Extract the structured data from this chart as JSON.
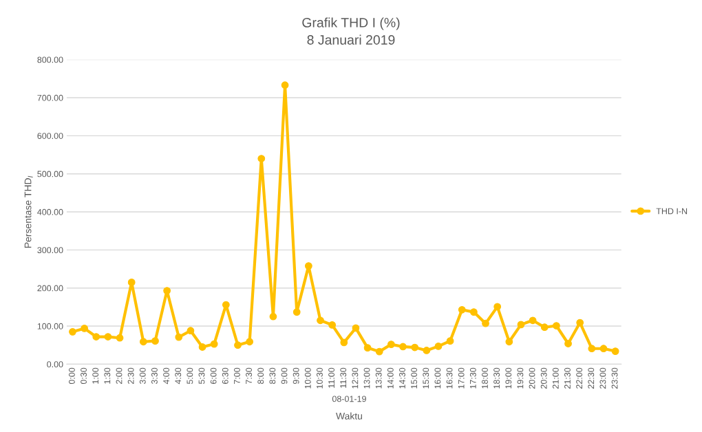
{
  "chart_data": {
    "type": "line",
    "title": "Grafik THD I (%)",
    "subtitle": "8 Januari 2019",
    "xlabel": "Waktu",
    "ylabel": "Persentase THD$_{I}$",
    "categories": [
      "0:00",
      "0:30",
      "1:00",
      "1:30",
      "2:00",
      "2:30",
      "3:00",
      "3:30",
      "4:00",
      "4:30",
      "5:00",
      "5:30",
      "6:00",
      "6:30",
      "7:00",
      "7:30",
      "8:00",
      "8:30",
      "9:00",
      "9:30",
      "10:00",
      "10:30",
      "11:00",
      "11:30",
      "12:30",
      "13:00",
      "13:30",
      "14:00",
      "14:30",
      "15:00",
      "15:30",
      "16:00",
      "16:30",
      "17:00",
      "17:30",
      "18:00",
      "18:30",
      "19:00",
      "19:30",
      "20:00",
      "20:30",
      "21:00",
      "21:30",
      "22:00",
      "22:30",
      "23:00",
      "23:30"
    ],
    "series": [
      {
        "name": "THD I-N",
        "color": "#ffc000",
        "values": [
          85,
          94,
          72,
          72,
          69,
          215,
          59,
          61,
          193,
          71,
          88,
          45,
          53,
          156,
          50,
          59,
          540,
          125,
          733,
          137,
          258,
          115,
          103,
          57,
          95,
          43,
          33,
          52,
          46,
          44,
          36,
          47,
          61,
          143,
          137,
          107,
          151,
          59,
          104,
          115,
          97,
          101,
          54,
          109,
          41,
          41,
          34
        ]
      }
    ],
    "annotations": [
      "08-01-19"
    ],
    "ylim": [
      0,
      800
    ],
    "yticks": [
      {
        "value": 0,
        "label": "0.00"
      },
      {
        "value": 100,
        "label": "100.00"
      },
      {
        "value": 200,
        "label": "200.00"
      },
      {
        "value": 300,
        "label": "300.00"
      },
      {
        "value": 400,
        "label": "400.00"
      },
      {
        "value": 500,
        "label": "500.00"
      },
      {
        "value": 600,
        "label": "600.00"
      },
      {
        "value": 700,
        "label": "700.00"
      },
      {
        "value": 800,
        "label": "800.00"
      }
    ],
    "grid": "y",
    "legend": "right",
    "marker": "circle",
    "line_style": "solid"
  }
}
